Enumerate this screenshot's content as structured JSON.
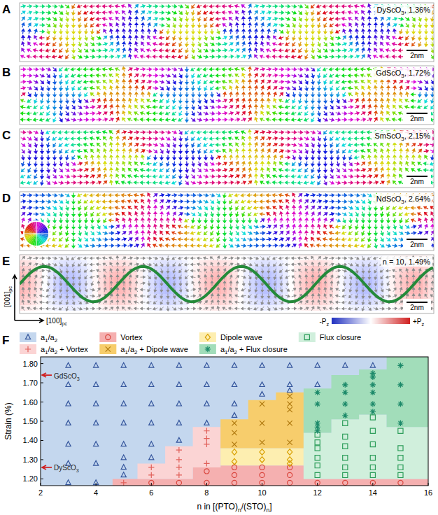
{
  "maps": [
    {
      "letter": "A",
      "label": "DyScO3, 1.36%",
      "scale_bar": "2nm"
    },
    {
      "letter": "B",
      "label": "GdScO3, 1.72%",
      "scale_bar": "2nm"
    },
    {
      "letter": "C",
      "label": "SmScO3, 2.15%",
      "scale_bar": "2nm"
    },
    {
      "letter": "D",
      "label": "NdScO3, 2.64%",
      "scale_bar": "2nm"
    },
    {
      "letter": "E",
      "label": "n = 10, 1.49%",
      "scale_bar": "2nm",
      "axis_x": "[100]pc",
      "axis_y": "[001]pc",
      "colorbar": [
        "-Pz",
        "+Pz"
      ]
    }
  ],
  "chart_data": {
    "letter": "F",
    "type": "scatter",
    "x_label": "n in [(PTO)n/(STO)n]",
    "y_label": "Strain (%)",
    "xlim": [
      2,
      16
    ],
    "ylim": [
      1.165,
      1.835
    ],
    "xticks": [
      2,
      4,
      6,
      8,
      10,
      12,
      14,
      16
    ],
    "yticks": [
      {
        "value": 1.2,
        "label": "1.20"
      },
      {
        "value": 1.3,
        "label": "1.30"
      },
      {
        "value": 1.4,
        "label": "1.40"
      },
      {
        "value": 1.5,
        "label": "1.50"
      },
      {
        "value": 1.6,
        "label": "1.60"
      },
      {
        "value": 1.7,
        "label": "1.70"
      },
      {
        "value": 1.8,
        "label": "1.80"
      }
    ],
    "grid": false,
    "legend": "top",
    "series": [
      {
        "name": "a1/a2",
        "color": "#34559c",
        "marker": "triangle",
        "x": [
          3,
          3,
          3,
          3,
          3,
          3,
          3,
          4,
          4,
          4,
          4,
          4,
          4,
          4,
          5,
          5,
          5,
          5,
          5,
          5,
          5,
          5,
          6,
          6,
          6,
          6,
          6,
          6,
          7,
          7,
          7,
          7,
          7,
          8,
          8,
          8,
          8,
          9,
          9,
          9,
          9,
          10,
          10,
          10,
          11,
          11,
          11,
          12,
          12,
          13,
          14
        ],
        "values": [
          1.18,
          1.28,
          1.38,
          1.49,
          1.59,
          1.69,
          1.79,
          1.18,
          1.28,
          1.38,
          1.49,
          1.59,
          1.69,
          1.79,
          1.22,
          1.26,
          1.31,
          1.38,
          1.49,
          1.59,
          1.69,
          1.79,
          1.31,
          1.38,
          1.49,
          1.59,
          1.69,
          1.79,
          1.4,
          1.49,
          1.59,
          1.69,
          1.79,
          1.49,
          1.59,
          1.69,
          1.79,
          1.53,
          1.59,
          1.69,
          1.79,
          1.64,
          1.69,
          1.79,
          1.66,
          1.69,
          1.79,
          1.69,
          1.79,
          1.79,
          1.79
        ]
      },
      {
        "name": "Vortex",
        "color": "#d9463e",
        "marker": "circle",
        "x": [
          6,
          7,
          8,
          8,
          9,
          9,
          9,
          10,
          10,
          10,
          11,
          11,
          11,
          12,
          13,
          14,
          15
        ],
        "values": [
          1.18,
          1.18,
          1.18,
          1.24,
          1.18,
          1.22,
          1.26,
          1.18,
          1.22,
          1.26,
          1.18,
          1.22,
          1.26,
          1.18,
          1.18,
          1.18,
          1.18
        ]
      },
      {
        "name": "Dipole wave",
        "color": "#d9a000",
        "marker": "diamond",
        "x": [
          9,
          9,
          10,
          10,
          11,
          11,
          11
        ],
        "values": [
          1.29,
          1.34,
          1.3,
          1.34,
          1.28,
          1.3,
          1.34
        ]
      },
      {
        "name": "Flux closure",
        "color": "#2e9e5b",
        "marker": "square",
        "x": [
          12,
          12,
          12,
          12,
          12,
          12,
          13,
          13,
          13,
          13,
          13,
          13,
          14,
          14,
          14,
          14,
          14,
          14,
          15,
          15,
          15,
          15,
          15
        ],
        "values": [
          1.22,
          1.27,
          1.31,
          1.36,
          1.39,
          1.43,
          1.22,
          1.26,
          1.31,
          1.37,
          1.42,
          1.49,
          1.22,
          1.26,
          1.31,
          1.38,
          1.45,
          1.52,
          1.22,
          1.26,
          1.31,
          1.36,
          1.45
        ]
      },
      {
        "name": "a1/a2 + Vortex",
        "color": "#e0605a",
        "marker": "plus",
        "x": [
          5,
          6,
          6,
          7,
          7,
          7,
          7,
          8,
          8,
          8,
          8
        ],
        "values": [
          1.18,
          1.22,
          1.26,
          1.22,
          1.26,
          1.3,
          1.35,
          1.28,
          1.38,
          1.41,
          1.45
        ]
      },
      {
        "name": "a1/a2 + Dipole wave",
        "color": "#b07a10",
        "marker": "cross",
        "x": [
          9,
          9,
          9,
          10,
          10,
          10,
          11,
          11,
          11,
          11,
          11
        ],
        "values": [
          1.38,
          1.44,
          1.49,
          1.39,
          1.49,
          1.59,
          1.39,
          1.49,
          1.56,
          1.59,
          1.63
        ]
      },
      {
        "name": "a1/a2 + Flux closure",
        "color": "#1d8a6a",
        "marker": "asterisk",
        "x": [
          12,
          12,
          12,
          12,
          12,
          13,
          13,
          13,
          13,
          14,
          14,
          14,
          14,
          14,
          14,
          15,
          15,
          15,
          15
        ],
        "values": [
          1.45,
          1.47,
          1.49,
          1.59,
          1.65,
          1.53,
          1.59,
          1.65,
          1.69,
          1.55,
          1.59,
          1.65,
          1.69,
          1.73,
          1.75,
          1.49,
          1.59,
          1.69,
          1.79
        ]
      }
    ],
    "regions": [
      {
        "name": "a1/a2",
        "color": "#c4d7ee",
        "points": [
          [
            2,
            1.165
          ],
          [
            16,
            1.165
          ],
          [
            16,
            1.835
          ],
          [
            2,
            1.835
          ]
        ]
      },
      {
        "name": "Vortex",
        "color": "#f5b0b0",
        "points": [
          [
            4.6,
            1.165
          ],
          [
            16,
            1.165
          ],
          [
            16,
            1.2
          ],
          [
            11.5,
            1.2
          ],
          [
            11.5,
            1.27
          ],
          [
            8.5,
            1.27
          ],
          [
            8.5,
            1.26
          ],
          [
            7.5,
            1.26
          ],
          [
            7.5,
            1.2
          ],
          [
            4.6,
            1.2
          ]
        ]
      },
      {
        "name": "a1/a2 + Vortex",
        "color": "#fbd4d4",
        "points": [
          [
            5.5,
            1.2
          ],
          [
            7.5,
            1.2
          ],
          [
            7.5,
            1.26
          ],
          [
            8.5,
            1.26
          ],
          [
            8.5,
            1.47
          ],
          [
            7.5,
            1.47
          ],
          [
            7.5,
            1.37
          ],
          [
            6.5,
            1.37
          ],
          [
            6.5,
            1.28
          ],
          [
            5.5,
            1.28
          ]
        ]
      },
      {
        "name": "Dipole wave",
        "color": "#fdeeb0",
        "points": [
          [
            8.5,
            1.27
          ],
          [
            11.5,
            1.27
          ],
          [
            11.5,
            1.36
          ],
          [
            8.5,
            1.36
          ]
        ]
      },
      {
        "name": "a1/a2 + Dipole wave",
        "color": "#f7cd6c",
        "points": [
          [
            8.5,
            1.36
          ],
          [
            11.5,
            1.36
          ],
          [
            11.5,
            1.65
          ],
          [
            10.5,
            1.65
          ],
          [
            10.5,
            1.61
          ],
          [
            9.5,
            1.61
          ],
          [
            9.5,
            1.51
          ],
          [
            8.5,
            1.51
          ]
        ]
      },
      {
        "name": "Flux closure",
        "color": "#d0efdc",
        "points": [
          [
            11.5,
            1.2
          ],
          [
            16,
            1.2
          ],
          [
            16,
            1.47
          ],
          [
            14.5,
            1.47
          ],
          [
            14.5,
            1.535
          ],
          [
            13.5,
            1.535
          ],
          [
            13.5,
            1.51
          ],
          [
            12.5,
            1.51
          ],
          [
            12.5,
            1.44
          ],
          [
            11.5,
            1.44
          ]
        ]
      },
      {
        "name": "a1/a2 + Flux closure",
        "color": "#a2ddba",
        "points": [
          [
            11.5,
            1.44
          ],
          [
            12.5,
            1.44
          ],
          [
            12.5,
            1.51
          ],
          [
            13.5,
            1.51
          ],
          [
            13.5,
            1.535
          ],
          [
            14.5,
            1.535
          ],
          [
            14.5,
            1.47
          ],
          [
            16,
            1.47
          ],
          [
            16,
            1.835
          ],
          [
            14.5,
            1.835
          ],
          [
            14.5,
            1.77
          ],
          [
            13.5,
            1.77
          ],
          [
            13.5,
            1.74
          ],
          [
            12.5,
            1.74
          ],
          [
            12.5,
            1.67
          ],
          [
            11.5,
            1.67
          ]
        ]
      }
    ],
    "annotations": [
      {
        "text": "GdScO3",
        "y": 1.74
      },
      {
        "text": "DyScO3",
        "y": 1.26
      }
    ]
  }
}
